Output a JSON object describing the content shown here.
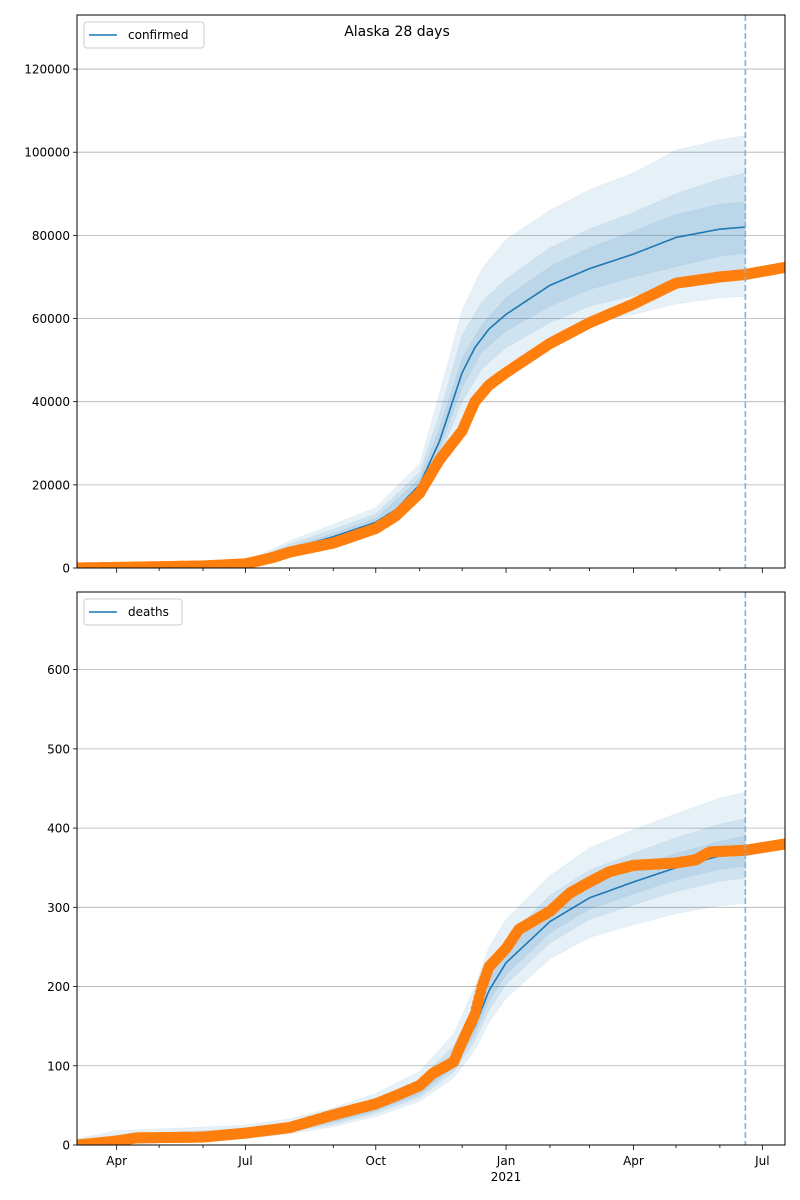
{
  "chart_data": [
    {
      "type": "line",
      "title": "Alaska 28 days",
      "legend": {
        "label": "confirmed",
        "placement": "top-left"
      },
      "xlim": [
        "2020-03-04",
        "2021-07-17"
      ],
      "ylim": [
        0,
        133000
      ],
      "yticks": [
        0,
        20000,
        40000,
        60000,
        80000,
        100000,
        120000
      ],
      "ytick_labels": [
        "0",
        "20000",
        "40000",
        "60000",
        "80000",
        "100000",
        "120000"
      ],
      "xticks": [
        {
          "date": "2020-04-01",
          "label": "Apr"
        },
        {
          "date": "2020-07-01",
          "label": "Jul"
        },
        {
          "date": "2020-10-01",
          "label": "Oct"
        },
        {
          "date": "2021-01-01",
          "label": "Jan",
          "sublabel": "2021"
        },
        {
          "date": "2021-04-01",
          "label": "Apr"
        },
        {
          "date": "2021-07-01",
          "label": "Jul"
        }
      ],
      "forecast_date": "2021-06-19",
      "grid": "y",
      "colors": {
        "median": "#1f77b4",
        "observed": "#ff7f0e",
        "band": "#1f77b4",
        "vline": "#7fb3d9"
      },
      "median": {
        "dates": [
          "2020-03-04",
          "2020-04-01",
          "2020-06-01",
          "2020-07-01",
          "2020-08-01",
          "2020-09-01",
          "2020-10-01",
          "2020-10-15",
          "2020-11-01",
          "2020-11-15",
          "2020-12-01",
          "2020-12-10",
          "2020-12-20",
          "2021-01-01",
          "2021-02-01",
          "2021-03-01",
          "2021-04-01",
          "2021-05-01",
          "2021-06-01",
          "2021-06-19"
        ],
        "values": [
          0,
          150,
          500,
          1100,
          4500,
          7500,
          11000,
          14000,
          20000,
          30500,
          47000,
          53000,
          57500,
          61000,
          68000,
          72000,
          75500,
          79500,
          81500,
          82000
        ]
      },
      "bands": [
        {
          "name": "outer",
          "dates": [
            "2020-03-04",
            "2020-06-01",
            "2020-07-01",
            "2020-08-01",
            "2020-09-01",
            "2020-10-01",
            "2020-11-01",
            "2020-11-15",
            "2020-12-01",
            "2020-12-15",
            "2021-01-01",
            "2021-02-01",
            "2021-03-01",
            "2021-04-01",
            "2021-05-01",
            "2021-06-01",
            "2021-06-19"
          ],
          "lower": [
            0,
            450,
            900,
            3500,
            6000,
            9000,
            17000,
            25000,
            36000,
            44000,
            49000,
            55000,
            59000,
            61000,
            63500,
            65000,
            65300
          ],
          "upper": [
            0,
            600,
            1500,
            6500,
            10500,
            14500,
            25000,
            42000,
            62000,
            72000,
            79000,
            86000,
            91000,
            95000,
            100500,
            103000,
            104000
          ]
        },
        {
          "name": "middle",
          "dates": [
            "2020-03-04",
            "2020-06-01",
            "2020-07-01",
            "2020-08-01",
            "2020-09-01",
            "2020-10-01",
            "2020-11-01",
            "2020-11-15",
            "2020-12-01",
            "2020-12-15",
            "2021-01-01",
            "2021-02-01",
            "2021-03-01",
            "2021-04-01",
            "2021-05-01",
            "2021-06-01",
            "2021-06-19"
          ],
          "lower": [
            0,
            480,
            950,
            3900,
            6600,
            9800,
            18000,
            27000,
            40000,
            48000,
            53000,
            59000,
            63000,
            65500,
            67500,
            69000,
            69400
          ],
          "upper": [
            0,
            560,
            1300,
            5700,
            9300,
            13000,
            23000,
            37000,
            56000,
            64000,
            69500,
            77000,
            81500,
            85500,
            90000,
            93500,
            95000
          ]
        },
        {
          "name": "inner",
          "dates": [
            "2020-03-04",
            "2020-06-01",
            "2020-07-01",
            "2020-08-01",
            "2020-09-01",
            "2020-10-01",
            "2020-11-01",
            "2020-11-15",
            "2020-12-01",
            "2020-12-15",
            "2021-01-01",
            "2021-02-01",
            "2021-03-01",
            "2021-04-01",
            "2021-05-01",
            "2021-06-01",
            "2021-06-19"
          ],
          "lower": [
            0,
            490,
            1000,
            4100,
            7000,
            10200,
            19000,
            28500,
            43500,
            52000,
            57000,
            63000,
            67000,
            70000,
            72500,
            75000,
            75700
          ],
          "upper": [
            0,
            520,
            1200,
            5000,
            8300,
            11900,
            21500,
            33500,
            50500,
            58500,
            65000,
            72500,
            77000,
            81000,
            85000,
            87500,
            88000
          ]
        }
      ],
      "observed": {
        "dates": [
          "2020-03-04",
          "2020-04-01",
          "2020-06-01",
          "2020-07-01",
          "2020-07-20",
          "2020-08-01",
          "2020-09-01",
          "2020-10-01",
          "2020-10-15",
          "2020-11-01",
          "2020-11-15",
          "2020-12-01",
          "2020-12-10",
          "2020-12-20",
          "2021-01-01",
          "2021-02-01",
          "2021-03-01",
          "2021-04-01",
          "2021-05-01",
          "2021-06-01",
          "2021-06-19",
          "2021-07-17"
        ],
        "values": [
          0,
          150,
          500,
          1000,
          2500,
          3800,
          6000,
          9500,
          12500,
          18000,
          26000,
          33000,
          40000,
          44000,
          47000,
          54000,
          59000,
          63500,
          68500,
          70000,
          70600,
          72300
        ]
      }
    },
    {
      "type": "line",
      "title": "",
      "legend": {
        "label": "deaths",
        "placement": "top-left"
      },
      "xlim": [
        "2020-03-04",
        "2021-07-17"
      ],
      "ylim": [
        0,
        698
      ],
      "yticks": [
        0,
        100,
        200,
        300,
        400,
        500,
        600
      ],
      "ytick_labels": [
        "0",
        "100",
        "200",
        "300",
        "400",
        "500",
        "600"
      ],
      "xticks": [
        {
          "date": "2020-04-01",
          "label": "Apr"
        },
        {
          "date": "2020-07-01",
          "label": "Jul"
        },
        {
          "date": "2020-10-01",
          "label": "Oct"
        },
        {
          "date": "2021-01-01",
          "label": "Jan",
          "sublabel": "2021"
        },
        {
          "date": "2021-04-01",
          "label": "Apr"
        },
        {
          "date": "2021-07-01",
          "label": "Jul"
        }
      ],
      "forecast_date": "2021-06-19",
      "grid": "y",
      "colors": {
        "median": "#1f77b4",
        "observed": "#ff7f0e",
        "band": "#1f77b4",
        "vline": "#7fb3d9"
      },
      "median": {
        "dates": [
          "2020-03-04",
          "2020-04-01",
          "2020-07-01",
          "2020-08-01",
          "2020-09-01",
          "2020-10-01",
          "2020-11-01",
          "2020-11-25",
          "2020-12-10",
          "2020-12-20",
          "2021-01-01",
          "2021-02-01",
          "2021-03-01",
          "2021-04-01",
          "2021-05-01",
          "2021-06-01",
          "2021-06-19"
        ],
        "values": [
          0,
          5,
          15,
          22,
          33,
          48,
          70,
          105,
          150,
          195,
          230,
          282,
          312,
          332,
          350,
          365,
          370
        ]
      },
      "bands": [
        {
          "name": "outer",
          "dates": [
            "2020-03-04",
            "2020-04-01",
            "2020-07-01",
            "2020-08-01",
            "2020-09-01",
            "2020-10-01",
            "2020-11-01",
            "2020-11-25",
            "2020-12-10",
            "2020-12-20",
            "2021-01-01",
            "2021-02-01",
            "2021-03-01",
            "2021-04-01",
            "2021-05-01",
            "2021-06-01",
            "2021-06-19"
          ],
          "lower": [
            0,
            1,
            8,
            14,
            23,
            36,
            55,
            85,
            120,
            155,
            185,
            235,
            262,
            278,
            292,
            302,
            305
          ],
          "upper": [
            8,
            18,
            25,
            33,
            47,
            65,
            93,
            140,
            200,
            250,
            285,
            340,
            375,
            398,
            418,
            438,
            445
          ]
        },
        {
          "name": "middle",
          "dates": [
            "2020-03-04",
            "2020-04-01",
            "2020-07-01",
            "2020-08-01",
            "2020-09-01",
            "2020-10-01",
            "2020-11-01",
            "2020-11-25",
            "2020-12-10",
            "2020-12-20",
            "2021-01-01",
            "2021-02-01",
            "2021-03-01",
            "2021-04-01",
            "2021-05-01",
            "2021-06-01",
            "2021-06-19"
          ],
          "lower": [
            0,
            2,
            10,
            17,
            26,
            40,
            60,
            92,
            132,
            170,
            203,
            255,
            285,
            303,
            320,
            333,
            337
          ],
          "upper": [
            5,
            12,
            21,
            28,
            41,
            58,
            83,
            125,
            178,
            225,
            260,
            315,
            347,
            368,
            388,
            405,
            412
          ]
        },
        {
          "name": "inner",
          "dates": [
            "2020-03-04",
            "2020-04-01",
            "2020-07-01",
            "2020-08-01",
            "2020-09-01",
            "2020-10-01",
            "2020-11-01",
            "2020-11-25",
            "2020-12-10",
            "2020-12-20",
            "2021-01-01",
            "2021-02-01",
            "2021-03-01",
            "2021-04-01",
            "2021-05-01",
            "2021-06-01",
            "2021-06-19"
          ],
          "lower": [
            0,
            3,
            12,
            19,
            29,
            43,
            64,
            98,
            140,
            182,
            215,
            268,
            298,
            317,
            335,
            348,
            352
          ],
          "upper": [
            3,
            8,
            18,
            25,
            37,
            53,
            76,
            113,
            163,
            210,
            245,
            298,
            328,
            350,
            368,
            383,
            390
          ]
        }
      ],
      "observed": {
        "dates": [
          "2020-03-04",
          "2020-04-01",
          "2020-04-15",
          "2020-06-01",
          "2020-07-01",
          "2020-08-01",
          "2020-09-01",
          "2020-10-01",
          "2020-10-15",
          "2020-11-01",
          "2020-11-10",
          "2020-11-25",
          "2020-12-01",
          "2020-12-10",
          "2020-12-15",
          "2020-12-20",
          "2021-01-01",
          "2021-01-10",
          "2021-02-01",
          "2021-02-15",
          "2021-03-01",
          "2021-03-15",
          "2021-04-01",
          "2021-05-01",
          "2021-05-15",
          "2021-05-25",
          "2021-06-19",
          "2021-07-17"
        ],
        "values": [
          0,
          5,
          9,
          10,
          15,
          22,
          38,
          52,
          62,
          75,
          90,
          105,
          130,
          165,
          200,
          225,
          248,
          272,
          295,
          318,
          332,
          345,
          353,
          356,
          360,
          370,
          372,
          380
        ]
      }
    }
  ]
}
